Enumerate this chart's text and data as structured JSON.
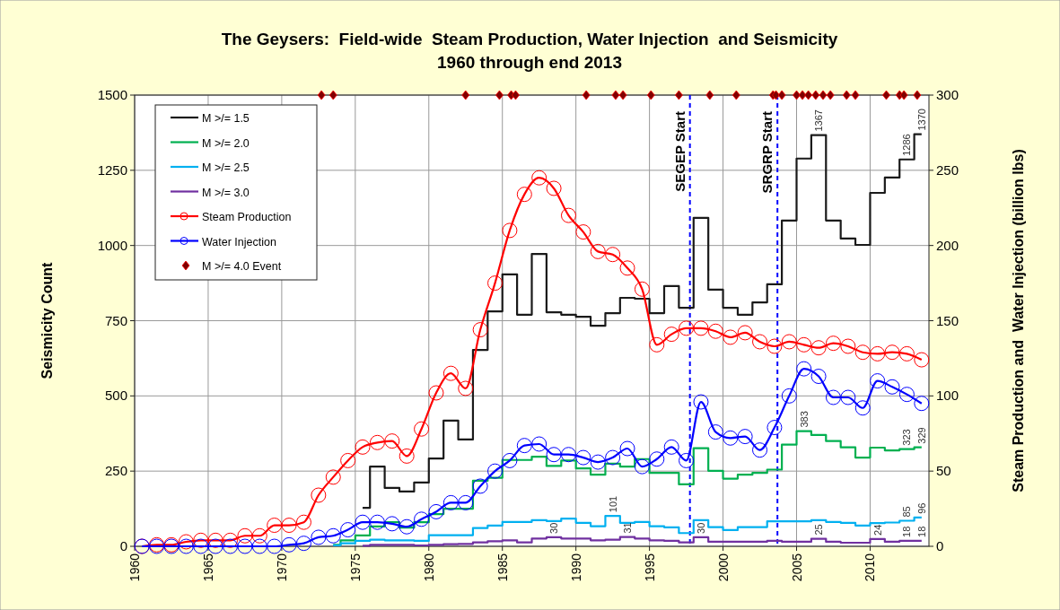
{
  "chart_data": {
    "type": "step",
    "title": "The Geysers:  Field-wide  Steam Production, Water Injection  and Seismicity\n1960 through end 2013",
    "ylabel": "Seismicity Count",
    "y2label": "Steam Production and  Water Injection (billion lbs)",
    "xlim": [
      1960,
      2014
    ],
    "xticks": [
      1960,
      1965,
      1970,
      1975,
      1980,
      1985,
      1990,
      1995,
      2000,
      2005,
      2010
    ],
    "ylim": [
      0,
      1500
    ],
    "yticks": [
      0,
      250,
      500,
      750,
      1000,
      1250,
      1500
    ],
    "y2lim": [
      0,
      300
    ],
    "y2ticks": [
      0,
      50,
      100,
      150,
      200,
      250,
      300
    ],
    "grid": true,
    "legend": "top left",
    "ref_lines": [
      {
        "axis": "x",
        "value": 1997.75,
        "label": "SEGEP Start",
        "color": "#0000ff",
        "line_style": "dashed"
      },
      {
        "axis": "x",
        "value": 2003.7,
        "label": "SRGRP Start",
        "color": "#0000ff",
        "line_style": "dashed"
      }
    ],
    "series": [
      {
        "name": "M >/= 1.5",
        "color": "#1a1a1a",
        "x": [
          1975.5,
          1976.5,
          1977.5,
          1978.5,
          1979.5,
          1980.5,
          1981.5,
          1982.5,
          1983.5,
          1984.5,
          1985.5,
          1986.5,
          1987.5,
          1988.5,
          1989.5,
          1990.5,
          1991.5,
          1992.5,
          1993.5,
          1994.5,
          1995.5,
          1996.5,
          1997.5,
          1998.5,
          1999.5,
          2000.5,
          2001.5,
          2002.5,
          2003.5,
          2004.5,
          2005.5,
          2006.5,
          2007.5,
          2008.5,
          2009.5,
          2010.5,
          2011.5,
          2012.5,
          2013.5
        ],
        "values": [
          128,
          265,
          194,
          182,
          212,
          292,
          418,
          355,
          653,
          781,
          904,
          770,
          972,
          778,
          770,
          763,
          733,
          775,
          826,
          823,
          775,
          865,
          793,
          1092,
          853,
          793,
          770,
          811,
          871,
          1083,
          1289,
          1367,
          1083,
          1023,
          1002,
          1175,
          1226,
          1286,
          1370
        ],
        "value_labels": [
          null,
          null,
          null,
          null,
          null,
          null,
          null,
          null,
          null,
          null,
          null,
          null,
          null,
          null,
          null,
          null,
          null,
          null,
          null,
          null,
          null,
          null,
          null,
          null,
          null,
          null,
          null,
          null,
          null,
          null,
          null,
          "1367",
          null,
          null,
          null,
          null,
          null,
          "1286",
          "1370"
        ]
      },
      {
        "name": "M >/= 2.0",
        "color": "#00b050",
        "x": [
          1973.5,
          1974.5,
          1975.5,
          1976.5,
          1977.5,
          1978.5,
          1979.5,
          1980.5,
          1981.5,
          1982.5,
          1983.5,
          1984.5,
          1985.5,
          1986.5,
          1987.5,
          1988.5,
          1989.5,
          1990.5,
          1991.5,
          1992.5,
          1993.5,
          1994.5,
          1995.5,
          1996.5,
          1997.5,
          1998.5,
          1999.5,
          2000.5,
          2001.5,
          2002.5,
          2003.5,
          2004.5,
          2005.5,
          2006.5,
          2007.5,
          2008.5,
          2009.5,
          2010.5,
          2011.5,
          2012.5,
          2013.5
        ],
        "values": [
          5,
          20,
          36,
          66,
          80,
          62,
          80,
          107,
          125,
          125,
          218,
          228,
          287,
          287,
          298,
          267,
          285,
          259,
          238,
          275,
          265,
          290,
          244,
          244,
          206,
          326,
          251,
          225,
          238,
          244,
          255,
          338,
          383,
          370,
          350,
          329,
          295,
          328,
          319,
          323,
          329
        ],
        "value_labels": [
          null,
          null,
          null,
          null,
          null,
          null,
          null,
          null,
          null,
          null,
          null,
          null,
          null,
          null,
          null,
          null,
          null,
          null,
          null,
          null,
          null,
          null,
          null,
          null,
          null,
          null,
          null,
          null,
          null,
          null,
          null,
          null,
          "383",
          null,
          null,
          null,
          null,
          null,
          null,
          "323",
          "329"
        ]
      },
      {
        "name": "M >/= 2.5",
        "color": "#00b0f0",
        "x": [
          1973.5,
          1974.5,
          1975.5,
          1976.5,
          1977.5,
          1978.5,
          1979.5,
          1980.5,
          1981.5,
          1982.5,
          1983.5,
          1984.5,
          1985.5,
          1986.5,
          1987.5,
          1988.5,
          1989.5,
          1990.5,
          1991.5,
          1992.5,
          1993.5,
          1994.5,
          1995.5,
          1996.5,
          1997.5,
          1998.5,
          1999.5,
          2000.5,
          2001.5,
          2002.5,
          2003.5,
          2004.5,
          2005.5,
          2006.5,
          2007.5,
          2008.5,
          2009.5,
          2010.5,
          2011.5,
          2012.5,
          2013.5
        ],
        "values": [
          3,
          10,
          18,
          22,
          20,
          20,
          18,
          37,
          37,
          37,
          61,
          69,
          81,
          81,
          87,
          84,
          92,
          78,
          67,
          101,
          78,
          81,
          67,
          63,
          44,
          87,
          64,
          54,
          64,
          64,
          83,
          83,
          83,
          87,
          81,
          78,
          69,
          77,
          79,
          85,
          96
        ],
        "value_labels": [
          null,
          null,
          null,
          null,
          null,
          null,
          null,
          null,
          null,
          null,
          null,
          null,
          null,
          null,
          null,
          null,
          null,
          null,
          null,
          "101",
          null,
          null,
          null,
          null,
          null,
          null,
          null,
          null,
          null,
          null,
          null,
          null,
          null,
          null,
          null,
          null,
          null,
          null,
          null,
          "85",
          "96"
        ]
      },
      {
        "name": "M >/= 3.0",
        "color": "#7030a0",
        "x": [
          1975.5,
          1976.5,
          1977.5,
          1978.5,
          1979.5,
          1980.5,
          1981.5,
          1982.5,
          1983.5,
          1984.5,
          1985.5,
          1986.5,
          1987.5,
          1988.5,
          1989.5,
          1990.5,
          1991.5,
          1992.5,
          1993.5,
          1994.5,
          1995.5,
          1996.5,
          1997.5,
          1998.5,
          1999.5,
          2000.5,
          2001.5,
          2002.5,
          2003.5,
          2004.5,
          2005.5,
          2006.5,
          2007.5,
          2008.5,
          2009.5,
          2010.5,
          2011.5,
          2012.5,
          2013.5
        ],
        "values": [
          2,
          5,
          5,
          5,
          3,
          5,
          7,
          8,
          13,
          17,
          20,
          13,
          26,
          30,
          26,
          26,
          20,
          22,
          31,
          26,
          20,
          18,
          13,
          30,
          15,
          15,
          15,
          15,
          18,
          15,
          15,
          25,
          15,
          12,
          12,
          24,
          15,
          18,
          18
        ],
        "value_labels": [
          null,
          null,
          null,
          null,
          null,
          null,
          null,
          null,
          null,
          null,
          null,
          null,
          null,
          "30",
          null,
          null,
          null,
          null,
          "31",
          null,
          null,
          null,
          null,
          "30",
          null,
          null,
          null,
          null,
          null,
          null,
          null,
          "25",
          null,
          null,
          null,
          "24",
          null,
          "18",
          "18"
        ]
      },
      {
        "name": "Steam Production",
        "type": "line",
        "axis": "y2",
        "marker": "circle",
        "color": "#ff0000",
        "x": [
          1960.5,
          1961.5,
          1962.5,
          1963.5,
          1964.5,
          1965.5,
          1966.5,
          1967.5,
          1968.5,
          1969.5,
          1970.5,
          1971.5,
          1972.5,
          1973.5,
          1974.5,
          1975.5,
          1976.5,
          1977.5,
          1978.5,
          1979.5,
          1980.5,
          1981.5,
          1982.5,
          1983.5,
          1984.5,
          1985.5,
          1986.5,
          1987.5,
          1988.5,
          1989.5,
          1990.5,
          1991.5,
          1992.5,
          1993.5,
          1994.5,
          1995.5,
          1996.5,
          1997.5,
          1998.5,
          1999.5,
          2000.5,
          2001.5,
          2002.5,
          2003.5,
          2004.5,
          2005.5,
          2006.5,
          2007.5,
          2008.5,
          2009.5,
          2010.5,
          2011.5,
          2012.5,
          2013.5
        ],
        "values": [
          0,
          1,
          1,
          3,
          4,
          4,
          4,
          7,
          7,
          14,
          14,
          16,
          34,
          46,
          57,
          66,
          69,
          70,
          60,
          78,
          102,
          115,
          105,
          144,
          175,
          210,
          234,
          245,
          238,
          220,
          209,
          196,
          194,
          185,
          171,
          134,
          141,
          145,
          145,
          143,
          139,
          142,
          136,
          133,
          136,
          134,
          132,
          135,
          133,
          129,
          128,
          129,
          128,
          124
        ]
      },
      {
        "name": "Water Injection",
        "type": "line",
        "axis": "y2",
        "marker": "circle",
        "color": "#0000ff",
        "x": [
          1960.5,
          1961.5,
          1962.5,
          1963.5,
          1964.5,
          1965.5,
          1966.5,
          1967.5,
          1968.5,
          1969.5,
          1970.5,
          1971.5,
          1972.5,
          1973.5,
          1974.5,
          1975.5,
          1976.5,
          1977.5,
          1978.5,
          1979.5,
          1980.5,
          1981.5,
          1982.5,
          1983.5,
          1984.5,
          1985.5,
          1986.5,
          1987.5,
          1988.5,
          1989.5,
          1990.5,
          1991.5,
          1992.5,
          1993.5,
          1994.5,
          1995.5,
          1996.5,
          1997.5,
          1998.5,
          1999.5,
          2000.5,
          2001.5,
          2002.5,
          2003.5,
          2004.5,
          2005.5,
          2006.5,
          2007.5,
          2008.5,
          2009.5,
          2010.5,
          2011.5,
          2012.5,
          2013.5
        ],
        "values": [
          0,
          0,
          0,
          0,
          0,
          0,
          0,
          0,
          0,
          0,
          1,
          2,
          6,
          7,
          11,
          16,
          16,
          15,
          13,
          18,
          23,
          29,
          29,
          40,
          50,
          57,
          67,
          68,
          61,
          61,
          59,
          56,
          59,
          65,
          53,
          58,
          66,
          57,
          96,
          76,
          72,
          73,
          64,
          79,
          100,
          118,
          113,
          99,
          99,
          92,
          110,
          106,
          101,
          95
        ]
      },
      {
        "name": "M >/= 4.0 Event",
        "type": "scatter",
        "marker": "diamond",
        "color": "#800000",
        "x": [
          1972.7,
          1973.5,
          1982.5,
          1984.8,
          1985.6,
          1985.9,
          1990.7,
          1992.7,
          1993.2,
          1995.1,
          1997,
          1999.1,
          2000.9,
          2003.4,
          2003.6,
          2004,
          2005,
          2005.4,
          2005.8,
          2006.3,
          2006.8,
          2007.3,
          2008.4,
          2009,
          2011.1,
          2012,
          2012.3,
          2013.2
        ],
        "values": [
          1500,
          1500,
          1500,
          1500,
          1500,
          1500,
          1500,
          1500,
          1500,
          1500,
          1500,
          1500,
          1500,
          1500,
          1500,
          1500,
          1500,
          1500,
          1500,
          1500,
          1500,
          1500,
          1500,
          1500,
          1500,
          1500,
          1500,
          1500
        ]
      }
    ]
  }
}
